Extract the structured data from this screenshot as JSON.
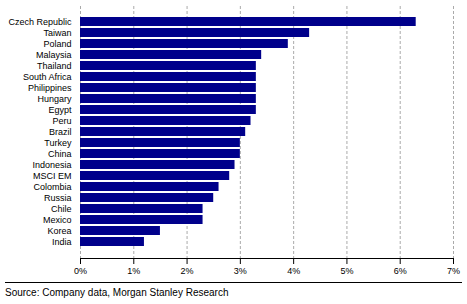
{
  "chart_data": {
    "type": "bar",
    "orientation": "horizontal",
    "categories": [
      "India",
      "Korea",
      "Mexico",
      "Chile",
      "Russia",
      "Colombia",
      "MSCI EM",
      "Indonesia",
      "China",
      "Turkey",
      "Brazil",
      "Peru",
      "Egypt",
      "Hungary",
      "Philippines",
      "South Africa",
      "Thailand",
      "Malaysia",
      "Poland",
      "Taiwan",
      "Czech Republic"
    ],
    "values": [
      0.012,
      0.015,
      0.023,
      0.023,
      0.025,
      0.026,
      0.028,
      0.029,
      0.03,
      0.03,
      0.031,
      0.032,
      0.033,
      0.033,
      0.033,
      0.033,
      0.033,
      0.034,
      0.039,
      0.043,
      0.063
    ],
    "color": "#00008B",
    "xlim": [
      0,
      0.07
    ],
    "xticks": [
      {
        "value": 0.0,
        "label": "0%"
      },
      {
        "value": 0.01,
        "label": "1%"
      },
      {
        "value": 0.02,
        "label": "2%"
      },
      {
        "value": 0.03,
        "label": "3%"
      },
      {
        "value": 0.04,
        "label": "4%"
      },
      {
        "value": 0.05,
        "label": "5%"
      },
      {
        "value": 0.06,
        "label": "6%"
      },
      {
        "value": 0.07,
        "label": "7%"
      }
    ],
    "grid": true,
    "annotations": [
      "Source: Company data, Morgan Stanley Research"
    ]
  }
}
